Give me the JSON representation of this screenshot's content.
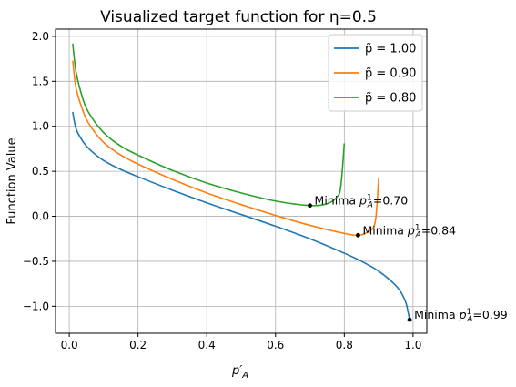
{
  "chart_data": {
    "type": "line",
    "title": "Visualized target function for η=0.5",
    "xlabel": "p′¹_A",
    "ylabel": "Function Value",
    "xlim": [
      -0.04,
      1.04
    ],
    "ylim": [
      -1.3,
      2.08
    ],
    "grid": true,
    "legend_position": "top-right",
    "xticks": [
      0.0,
      0.2,
      0.4,
      0.6,
      0.8,
      1.0
    ],
    "xtick_labels": [
      "0.0",
      "0.2",
      "0.4",
      "0.6",
      "0.8",
      "1.0"
    ],
    "yticks": [
      -1.0,
      -0.5,
      0.0,
      0.5,
      1.0,
      1.5,
      2.0
    ],
    "ytick_labels": [
      "−1.0",
      "−0.5",
      "0.0",
      "0.5",
      "1.0",
      "1.5",
      "2.0"
    ],
    "series": [
      {
        "name": "p̃ = 1.00",
        "color": "#1f77b4",
        "x": [
          0.01,
          0.02,
          0.04,
          0.06,
          0.1,
          0.15,
          0.2,
          0.3,
          0.4,
          0.5,
          0.6,
          0.7,
          0.8,
          0.85,
          0.9,
          0.95,
          0.97,
          0.98,
          0.99
        ],
        "y": [
          1.16,
          0.97,
          0.83,
          0.74,
          0.62,
          0.52,
          0.44,
          0.29,
          0.15,
          0.02,
          -0.11,
          -0.25,
          -0.41,
          -0.5,
          -0.61,
          -0.77,
          -0.88,
          -0.97,
          -1.15
        ]
      },
      {
        "name": "p̃ = 0.90",
        "color": "#ff7f0e",
        "x": [
          0.01,
          0.02,
          0.04,
          0.06,
          0.1,
          0.15,
          0.2,
          0.3,
          0.4,
          0.5,
          0.6,
          0.7,
          0.8,
          0.84,
          0.87,
          0.89,
          0.9
        ],
        "y": [
          1.73,
          1.42,
          1.17,
          1.01,
          0.82,
          0.68,
          0.58,
          0.41,
          0.26,
          0.13,
          0.01,
          -0.1,
          -0.19,
          -0.21,
          -0.17,
          -0.06,
          0.42
        ]
      },
      {
        "name": "p̃ = 0.80",
        "color": "#2ca02c",
        "x": [
          0.01,
          0.02,
          0.04,
          0.06,
          0.1,
          0.15,
          0.2,
          0.3,
          0.4,
          0.5,
          0.6,
          0.7,
          0.75,
          0.78,
          0.79,
          0.8
        ],
        "y": [
          1.92,
          1.6,
          1.3,
          1.13,
          0.93,
          0.78,
          0.68,
          0.51,
          0.37,
          0.26,
          0.17,
          0.12,
          0.14,
          0.22,
          0.34,
          0.81
        ]
      }
    ],
    "annotations": [
      {
        "x": 0.7,
        "y": 0.12,
        "text": "Minima p¹_A=0.70"
      },
      {
        "x": 0.84,
        "y": -0.21,
        "text": "Minima p¹_A=0.84"
      },
      {
        "x": 0.99,
        "y": -1.15,
        "text": "Minima p¹_A=0.99"
      }
    ]
  }
}
